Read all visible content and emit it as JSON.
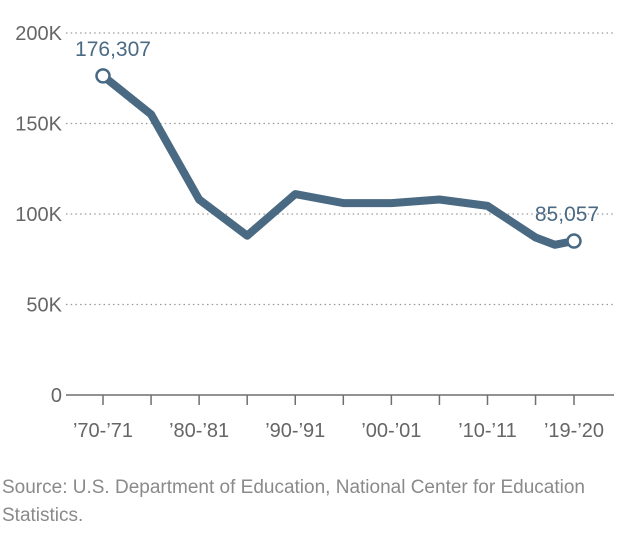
{
  "colors": {
    "line": "#4a6a84",
    "label": "#4a6a84",
    "tick_text": "#666666",
    "grid": "#9a9a9a"
  },
  "chart_data": {
    "type": "line",
    "x": [
      1970,
      1975,
      1980,
      1985,
      1990,
      1995,
      2000,
      2005,
      2010,
      2015,
      2017,
      2019
    ],
    "series": [
      {
        "values": [
          176307,
          155000,
          108000,
          88000,
          111000,
          106000,
          106000,
          108000,
          104500,
          87000,
          83000,
          85057
        ]
      }
    ],
    "x_tick_positions": [
      1970,
      1975,
      1980,
      1985,
      1990,
      1995,
      2000,
      2005,
      2010,
      2015,
      2019
    ],
    "x_tick_labels": [
      {
        "x": 1970,
        "label": "’70-’71"
      },
      {
        "x": 1980,
        "label": "’80-’81"
      },
      {
        "x": 1990,
        "label": "’90-’91"
      },
      {
        "x": 2000,
        "label": "’00-’01"
      },
      {
        "x": 2010,
        "label": "’10-’11"
      },
      {
        "x": 2019,
        "label": "’19-’20"
      }
    ],
    "y_ticks": [
      0,
      50000,
      100000,
      150000,
      200000
    ],
    "y_tick_labels": [
      "0",
      "50K",
      "100K",
      "150K",
      "200K"
    ],
    "ylim": [
      0,
      200000
    ],
    "xlim": [
      1970,
      2019
    ],
    "grid": true,
    "annotations": [
      {
        "x": 1970,
        "y": 176307,
        "label": "176,307"
      },
      {
        "x": 2019,
        "y": 85057,
        "label": "85,057"
      }
    ]
  },
  "source": "Source: U.S. Department of Education, National Center for Education Statistics."
}
